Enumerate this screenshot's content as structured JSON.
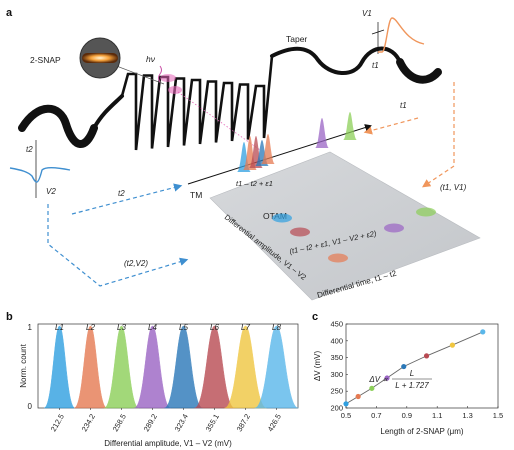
{
  "panel_a": {
    "panel_label": "a",
    "labels": {
      "taper": "Taper",
      "snap": "2-SNAP",
      "hv": "hν",
      "tm": "TM",
      "otam": "OTAM",
      "v1": "V1",
      "t1_top": "t1",
      "t2_left": "t2",
      "v2": "V2",
      "t1_arrow": "t1",
      "t1v1": "(t1, V1)",
      "t2_arrow": "t2",
      "t2v2": "(t2,V2)",
      "tm_axis": "t1 – t2 + ε1",
      "ramp": "(t1 – t2 + ε1, V1 – V2 + ε2)",
      "x_axis": "Differential time, t1 – t2",
      "y_axis": "Differential amplitude, V1 – V2"
    }
  },
  "panel_b": {
    "panel_label": "b"
  },
  "panel_c": {
    "panel_label": "c"
  },
  "chart_data": [
    {
      "type": "histogram",
      "panel": "b",
      "xlabel": "Differential amplitude, V1 – V2 (mV)",
      "ylabel": "Norm. count",
      "yticks": [
        "0",
        "1"
      ],
      "categories": [
        "L1",
        "L2",
        "L3",
        "L4",
        "L5",
        "L6",
        "L7",
        "L8"
      ],
      "x": [
        212.5,
        234.2,
        258.5,
        289.2,
        323.4,
        355.1,
        387.2,
        426.5
      ],
      "values": [
        1,
        1,
        1,
        1,
        1,
        1,
        1,
        1
      ],
      "colors": [
        "#2f9fe0",
        "#e57a52",
        "#8ccf58",
        "#9a64c4",
        "#2a78b8",
        "#b84a52",
        "#f0c640",
        "#5ab7ea"
      ]
    },
    {
      "type": "scatter",
      "panel": "c",
      "xlabel": "Length of 2-SNAP (μm)",
      "ylabel": "ΔV (mV)",
      "xlim": [
        0.5,
        1.5
      ],
      "ylim": [
        200,
        450
      ],
      "xticks": [
        0.5,
        0.7,
        0.9,
        1.1,
        1.3,
        1.5
      ],
      "yticks": [
        200,
        250,
        300,
        350,
        400,
        450
      ],
      "annotation": "ΔV ∝ L / (L + 1.727)",
      "formula": {
        "lhs": "ΔV ∝",
        "num": "L",
        "den": "L + 1.727"
      },
      "x": [
        0.5,
        0.58,
        0.67,
        0.77,
        0.88,
        1.03,
        1.2,
        1.4
      ],
      "y": [
        212.5,
        234.2,
        258.5,
        289.2,
        323.4,
        355.1,
        387.2,
        426.5
      ],
      "colors": [
        "#2f9fe0",
        "#e57a52",
        "#8ccf58",
        "#9a64c4",
        "#2a78b8",
        "#b84a52",
        "#f0c640",
        "#5ab7ea"
      ],
      "fit": "line"
    }
  ]
}
